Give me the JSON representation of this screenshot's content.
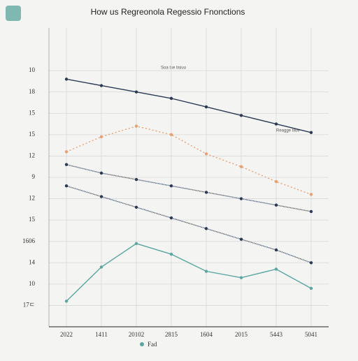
{
  "chart_data": {
    "type": "line",
    "title": "How us Regreonola Regessio Fnonctions",
    "categories": [
      "2022",
      "1411",
      "20102",
      "2815",
      "1604",
      "2015",
      "5443",
      "5041"
    ],
    "series": [
      {
        "name": "Fad",
        "color": "#5aa6a0",
        "values": [
          1.2,
          2.8,
          3.9,
          3.4,
          2.6,
          2.3,
          2.7,
          1.8
        ]
      },
      {
        "color": "#2b3a55",
        "values": [
          11.6,
          11.3,
          11.0,
          10.7,
          10.3,
          9.9,
          9.5,
          9.1
        ]
      },
      {
        "color": "#2b3a55",
        "values": [
          7.6,
          7.2,
          6.9,
          6.6,
          6.3,
          6.0,
          5.7,
          5.4
        ]
      },
      {
        "color": "#2b3a55",
        "values": [
          6.6,
          6.1,
          5.6,
          5.1,
          4.6,
          4.1,
          3.6,
          3.0
        ]
      },
      {
        "color": "#e8a070",
        "values": [
          8.2,
          8.9,
          9.4,
          9.0,
          8.1,
          7.5,
          6.8,
          6.2
        ]
      }
    ],
    "ylim": [
      0,
      14
    ],
    "yticks": [
      {
        "value": 1,
        "label": "17ㄷ"
      },
      {
        "value": 2,
        "label": "10"
      },
      {
        "value": 3,
        "label": "14"
      },
      {
        "value": 4,
        "label": "1606"
      },
      {
        "value": 5,
        "label": "15"
      },
      {
        "value": 6,
        "label": "12"
      },
      {
        "value": 7,
        "label": "9"
      },
      {
        "value": 8,
        "label": "12"
      },
      {
        "value": 9,
        "label": "15"
      },
      {
        "value": 10,
        "label": "15"
      },
      {
        "value": 11,
        "label": "18"
      },
      {
        "value": 12,
        "label": "10"
      }
    ],
    "grid": true,
    "annotations": [
      "Soa tse tisiuu",
      "Reagge tilue"
    ]
  }
}
